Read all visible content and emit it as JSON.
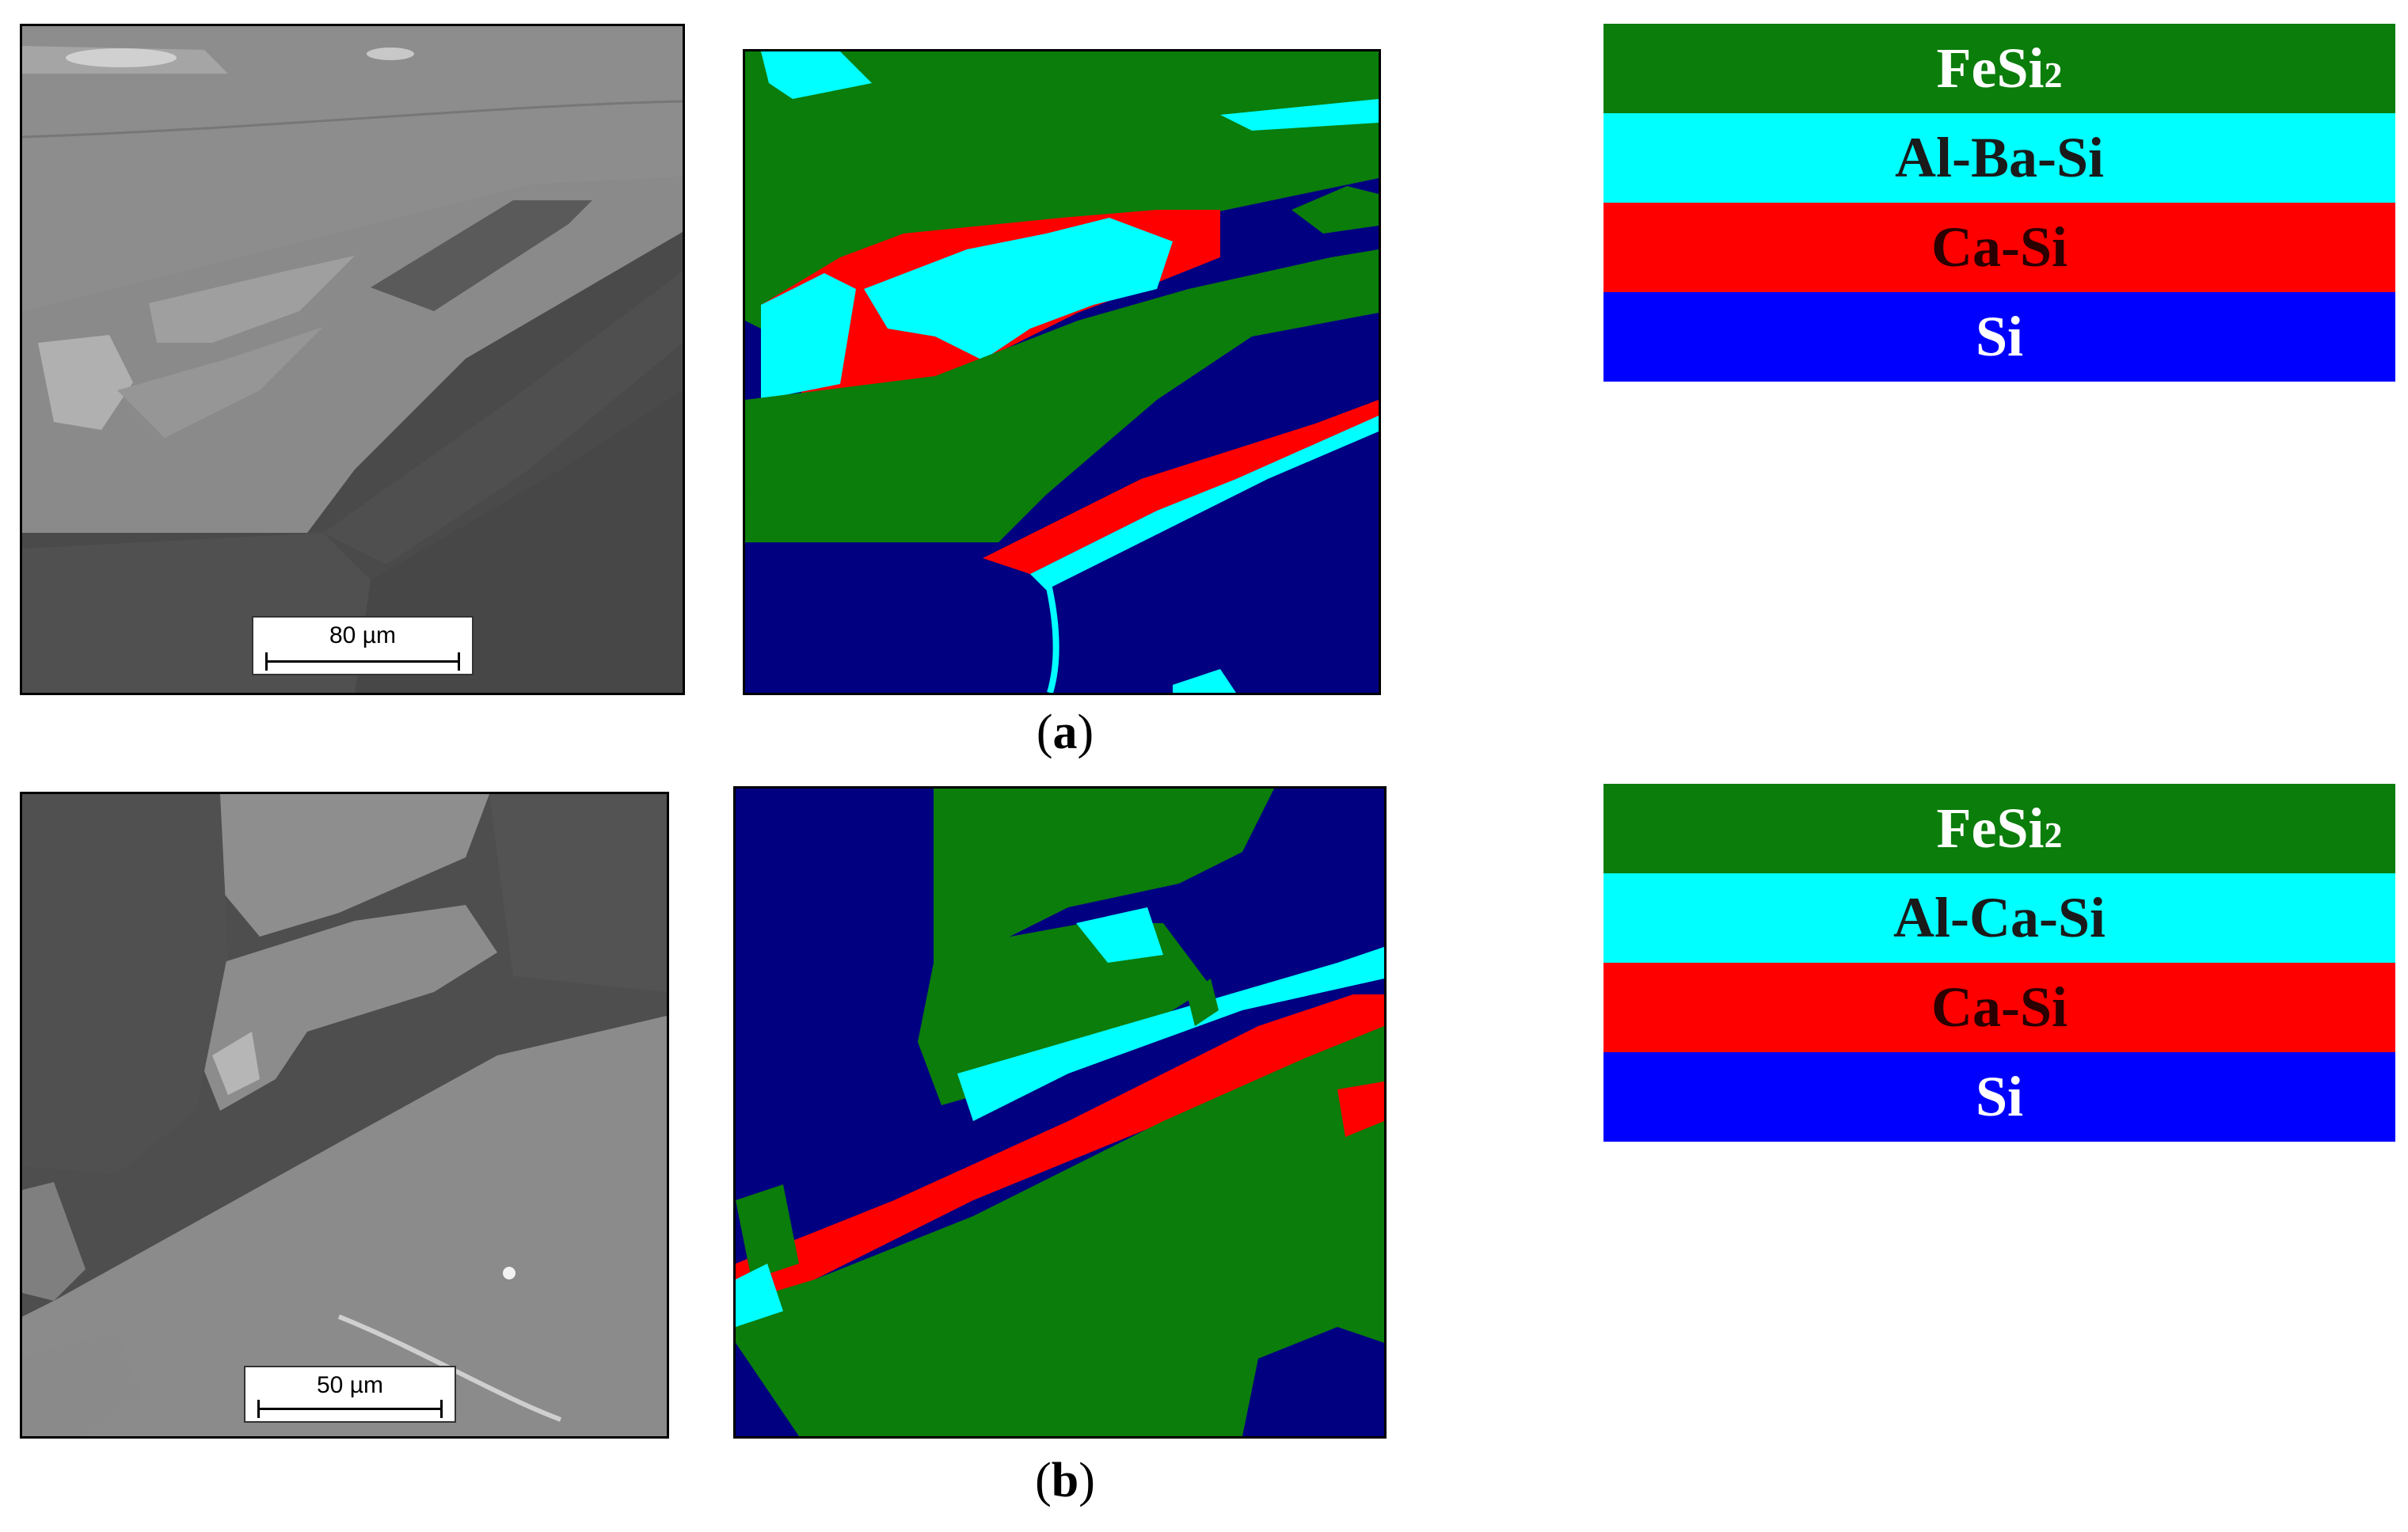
{
  "figure": {
    "panels": [
      {
        "caption_label": "a",
        "scale_bar": "80 µm",
        "legend": [
          {
            "name": "FeSi",
            "subscript": "2",
            "color": "#0b7d0b",
            "text_color": "#ffffff"
          },
          {
            "name": "Al-Ba-Si",
            "subscript": "",
            "color": "#00ffff",
            "text_color": "#1a1a1a"
          },
          {
            "name": "Ca-Si",
            "subscript": "",
            "color": "#ff0000",
            "text_color": "#2a0000"
          },
          {
            "name": "Si",
            "subscript": "",
            "color": "#0000ff",
            "text_color": "#ffffff"
          }
        ]
      },
      {
        "caption_label": "b",
        "scale_bar": "50 µm",
        "legend": [
          {
            "name": "FeSi",
            "subscript": "2",
            "color": "#0b7d0b",
            "text_color": "#ffffff"
          },
          {
            "name": "Al-Ca-Si",
            "subscript": "",
            "color": "#00ffff",
            "text_color": "#1a1a1a"
          },
          {
            "name": "Ca-Si",
            "subscript": "",
            "color": "#ff0000",
            "text_color": "#2a0000"
          },
          {
            "name": "Si",
            "subscript": "",
            "color": "#0000ff",
            "text_color": "#ffffff"
          }
        ]
      }
    ],
    "phase_map_colors": {
      "FeSi2": "#0b7d0b",
      "Al-Si phase": "#00ffff",
      "Ca-Si": "#ff0000",
      "Si": "#000080"
    }
  }
}
